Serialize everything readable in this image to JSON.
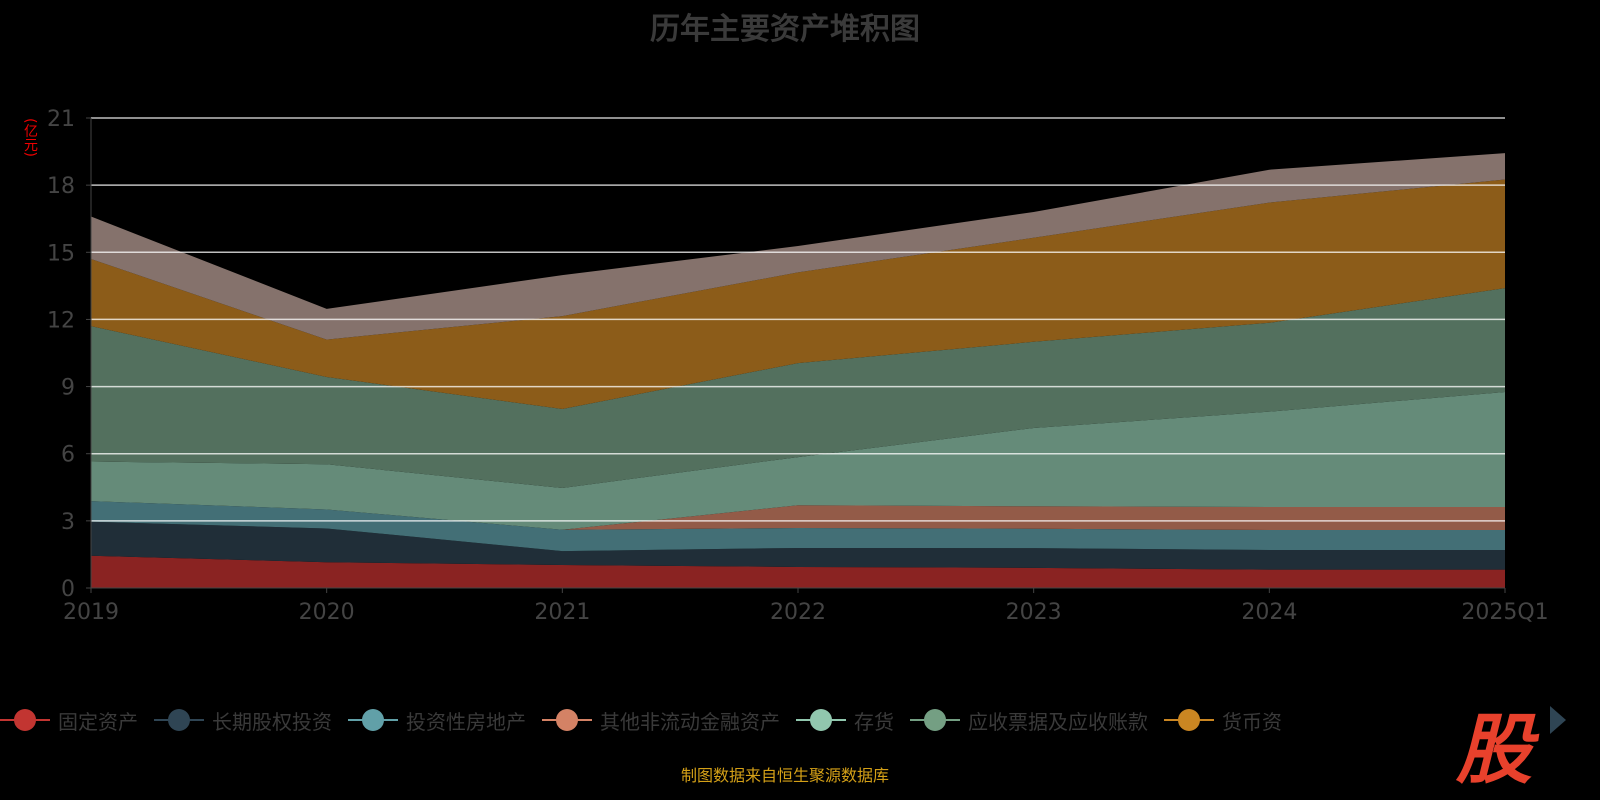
{
  "chart_data": {
    "type": "area",
    "stacked": true,
    "title": "历年主要资产堆积图",
    "ylabel": "(亿元)",
    "xlabel": "",
    "categories": [
      "2019",
      "2020",
      "2021",
      "2022",
      "2023",
      "2024",
      "2025Q1"
    ],
    "ylim": [
      0,
      21
    ],
    "yticks": [
      0,
      3,
      6,
      9,
      12,
      15,
      18,
      21
    ],
    "grid": true,
    "legend_position": "bottom",
    "series": [
      {
        "name": "固定资产",
        "color": "#c23531",
        "fill": "#8a2322",
        "values": [
          1.44,
          1.15,
          1.03,
          0.94,
          0.9,
          0.82,
          0.82
        ]
      },
      {
        "name": "长期股权投资",
        "color": "#2f4554",
        "fill": "#202e38",
        "values": [
          1.52,
          1.51,
          0.62,
          0.85,
          0.88,
          0.88,
          0.88
        ]
      },
      {
        "name": "投资性房地产",
        "color": "#61a0a8",
        "fill": "#436f76",
        "values": [
          0.92,
          0.85,
          0.95,
          0.89,
          0.87,
          0.89,
          0.89
        ]
      },
      {
        "name": "其他非流动金融资产",
        "color": "#d48265",
        "fill": "#935b48",
        "values": [
          0,
          0,
          0,
          1.02,
          1.0,
          1.03,
          1.03
        ]
      },
      {
        "name": "存货",
        "color": "#91c7ae",
        "fill": "#658b79",
        "values": [
          1.77,
          2.02,
          1.87,
          2.15,
          3.5,
          4.26,
          5.14
        ]
      },
      {
        "name": "应收票据及应收账款",
        "color": "#749f83",
        "fill": "#53705e",
        "values": [
          6.05,
          3.9,
          3.53,
          4.2,
          3.85,
          3.97,
          4.64
        ]
      },
      {
        "name": "货币资",
        "color": "#ca8622",
        "fill": "#8c5c19",
        "values": [
          3.0,
          1.67,
          4.15,
          4.05,
          4.65,
          5.37,
          4.85
        ]
      },
      {
        "name": "",
        "color": "#bda29a",
        "fill": "#85726c",
        "values": [
          1.9,
          1.37,
          1.83,
          1.18,
          1.15,
          1.47,
          1.18
        ]
      }
    ]
  },
  "footer": "制图数据来自恒生聚源数据库",
  "logo_text": "股"
}
